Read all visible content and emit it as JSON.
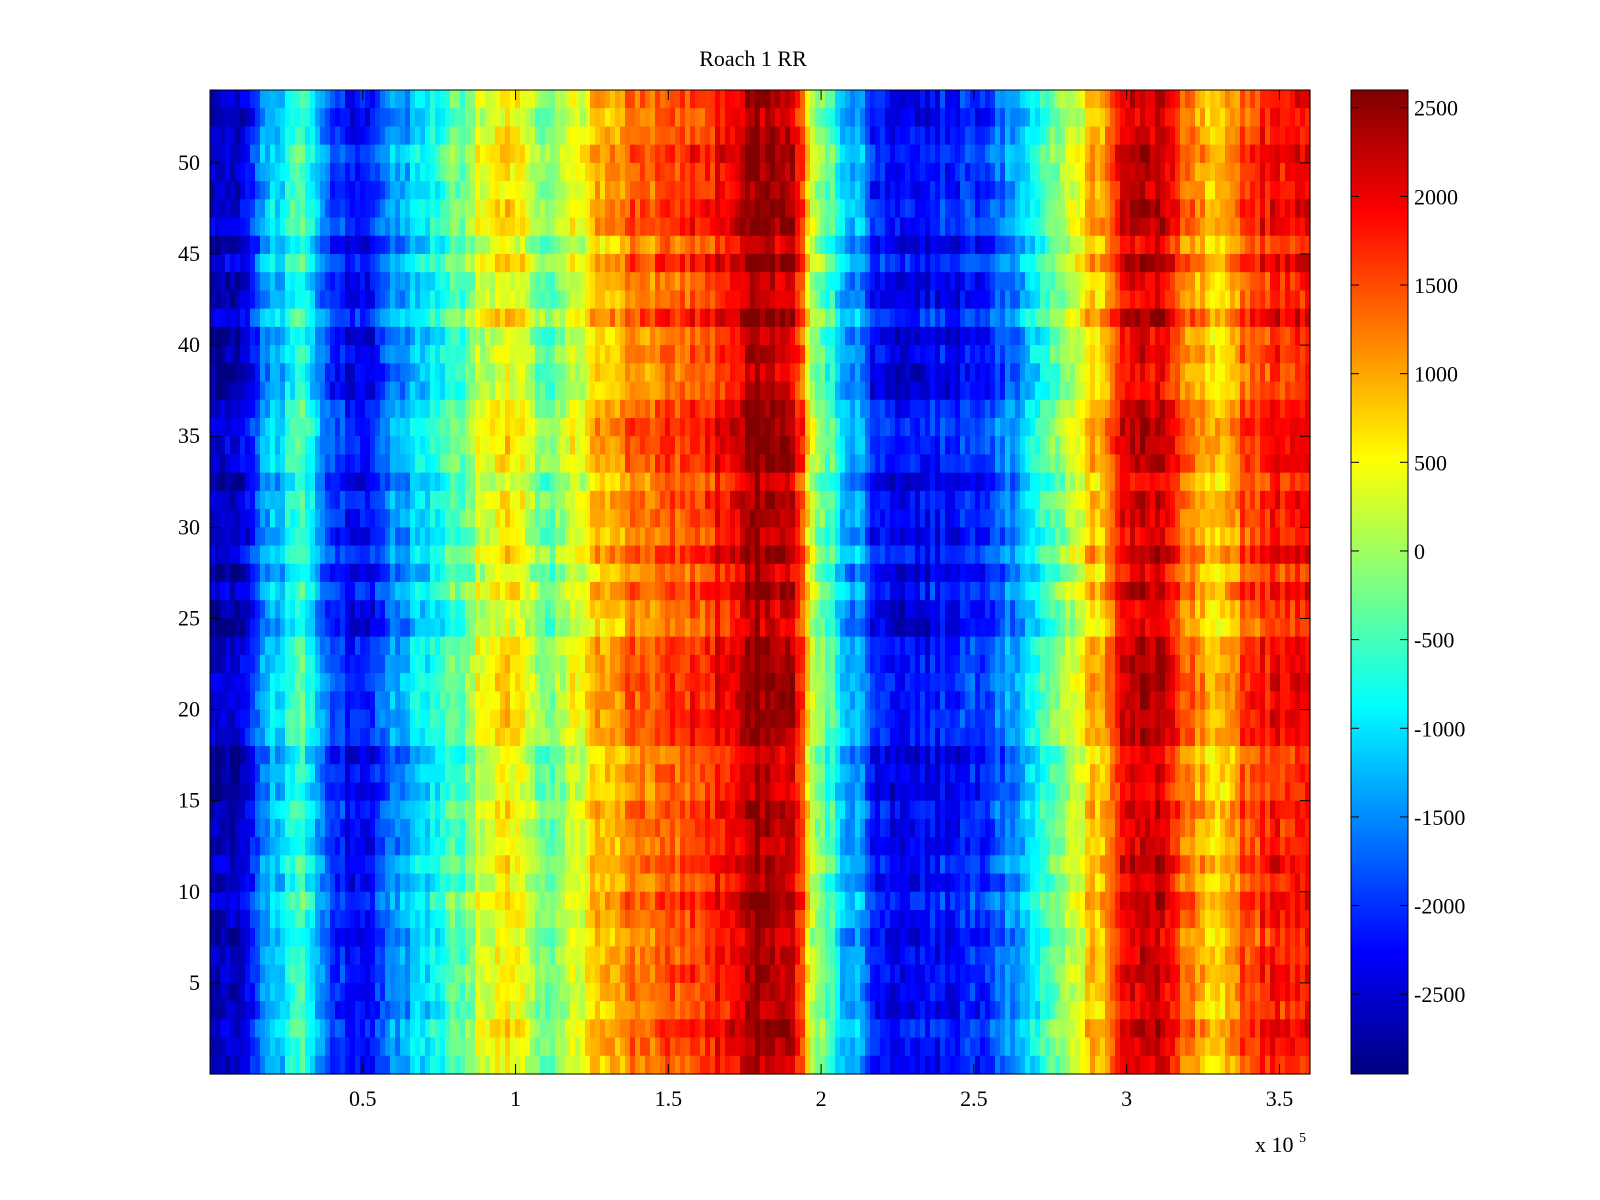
{
  "chart_data": {
    "type": "heatmap",
    "title": "Roach 1 RR",
    "xlabel": "",
    "ylabel": "",
    "x_multiplier_label": "x 10",
    "x_multiplier_exponent": "5",
    "xlim": [
      0,
      3.6
    ],
    "ylim": [
      0,
      54
    ],
    "x_ticks": [
      0.5,
      1,
      1.5,
      2,
      2.5,
      3,
      3.5
    ],
    "x_tick_labels": [
      "0.5",
      "1",
      "1.5",
      "2",
      "2.5",
      "3",
      "3.5"
    ],
    "y_ticks": [
      5,
      10,
      15,
      20,
      25,
      30,
      35,
      40,
      45,
      50
    ],
    "y_tick_labels": [
      "5",
      "10",
      "15",
      "20",
      "25",
      "30",
      "35",
      "40",
      "45",
      "50"
    ],
    "rows": 54,
    "colorbar": {
      "colormap": "jet",
      "limits": [
        -2950,
        2600
      ],
      "ticks": [
        2500,
        2000,
        1500,
        1000,
        500,
        0,
        -500,
        -1000,
        -1500,
        -2000,
        -2500
      ],
      "tick_labels": [
        "2500",
        "2000",
        "1500",
        "1000",
        "500",
        "0",
        "-500",
        "-1000",
        "-1500",
        "-2000",
        "-2500"
      ]
    },
    "value_profile_along_x": {
      "x": [
        0,
        0.1,
        0.2,
        0.3,
        0.4,
        0.5,
        0.6,
        0.7,
        0.8,
        0.9,
        1.0,
        1.1,
        1.2,
        1.3,
        1.4,
        1.5,
        1.6,
        1.7,
        1.8,
        1.9,
        2.0,
        2.1,
        2.2,
        2.3,
        2.4,
        2.5,
        2.6,
        2.7,
        2.8,
        2.9,
        3.0,
        3.1,
        3.2,
        3.3,
        3.4,
        3.5,
        3.6
      ],
      "value": [
        -2700,
        -2500,
        -1200,
        -600,
        -1900,
        -2300,
        -1500,
        -1000,
        -400,
        300,
        600,
        -400,
        300,
        1000,
        1300,
        1400,
        1600,
        1900,
        2450,
        2200,
        -300,
        -1300,
        -2200,
        -2300,
        -2200,
        -2000,
        -1600,
        -900,
        0,
        900,
        2000,
        2200,
        1200,
        600,
        1600,
        1800,
        2000
      ]
    }
  }
}
